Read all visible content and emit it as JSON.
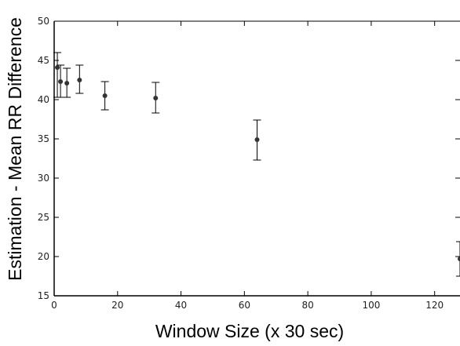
{
  "chart_data": {
    "type": "scatter",
    "title": "",
    "xlabel": "Window Size (x 30 sec)",
    "ylabel": "Estimation - Mean RR Difference",
    "xlim": [
      0,
      128
    ],
    "ylim": [
      15,
      50
    ],
    "x_ticks": [
      0,
      20,
      40,
      60,
      80,
      100,
      120
    ],
    "x_tick_labels": [
      "0",
      "20",
      "40",
      "60",
      "80",
      "100",
      "120"
    ],
    "y_ticks": [
      15,
      20,
      25,
      30,
      35,
      40,
      45,
      50
    ],
    "y_tick_labels": [
      "15",
      "20",
      "25",
      "30",
      "35",
      "40",
      "45",
      "50"
    ],
    "grid": false,
    "legend": "none",
    "colors": {
      "marker": "#333333",
      "axis": "#000000",
      "text": "#222222"
    },
    "series": [
      {
        "x": [
          1,
          2,
          4,
          8,
          16,
          32,
          64,
          128
        ],
        "y": [
          44.1,
          42.3,
          42.1,
          42.5,
          40.5,
          40.2,
          34.9,
          19.7
        ],
        "err_low": [
          40.3,
          40.3,
          40.3,
          40.8,
          38.7,
          38.3,
          32.3,
          17.5
        ],
        "err_high": [
          46.0,
          44.4,
          44.0,
          44.4,
          42.3,
          42.2,
          37.4,
          21.9
        ]
      }
    ]
  }
}
